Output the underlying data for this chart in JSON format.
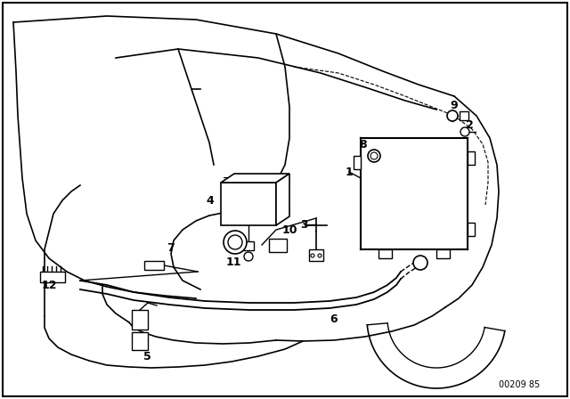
{
  "background_color": "#ffffff",
  "figure_code": "00209 85",
  "label_fontsize": 9,
  "line_color": "#000000",
  "line_width": 1.0
}
